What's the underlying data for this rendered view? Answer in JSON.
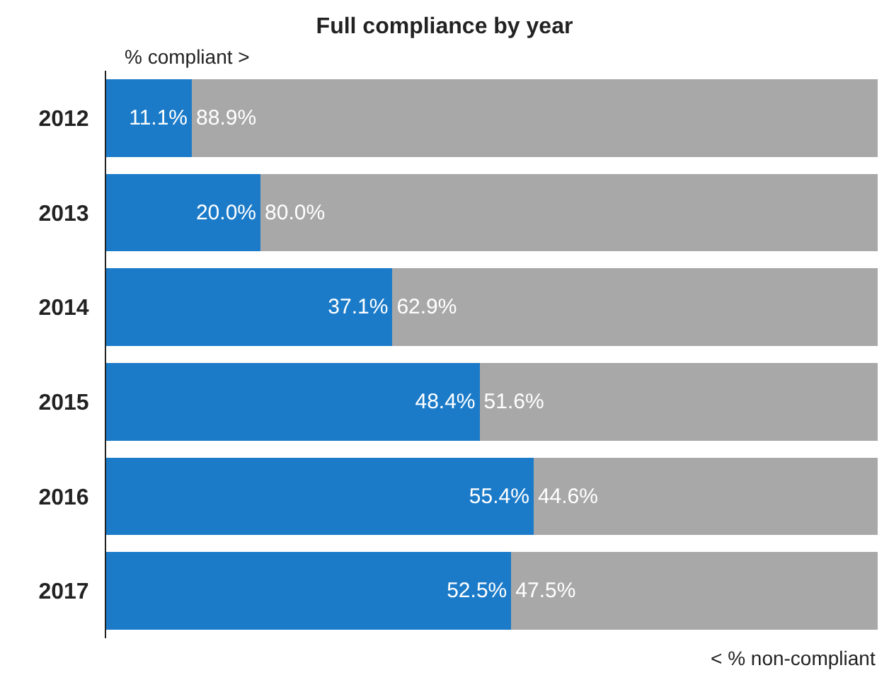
{
  "chart_data": {
    "type": "bar",
    "title": "Full compliance by year",
    "orientation": "horizontal",
    "stacked": true,
    "categories": [
      "2012",
      "2013",
      "2014",
      "2015",
      "2016",
      "2017"
    ],
    "series": [
      {
        "color": "#1b7bc9",
        "values": [
          11.1,
          20.0,
          37.1,
          48.4,
          55.4,
          52.5
        ],
        "value_labels": [
          "11.1%",
          "20.0%",
          "37.1%",
          "48.4%",
          "55.4%",
          "52.5%"
        ]
      },
      {
        "color": "#a8a8a8",
        "values": [
          88.9,
          80.0,
          62.9,
          51.6,
          44.6,
          47.5
        ],
        "value_labels": [
          "88.9%",
          "80.0%",
          "62.9%",
          "51.6%",
          "44.6%",
          "47.5%"
        ]
      }
    ],
    "xlim": [
      0,
      100
    ],
    "annotations": [
      "% compliant >",
      "< % non-compliant"
    ]
  }
}
